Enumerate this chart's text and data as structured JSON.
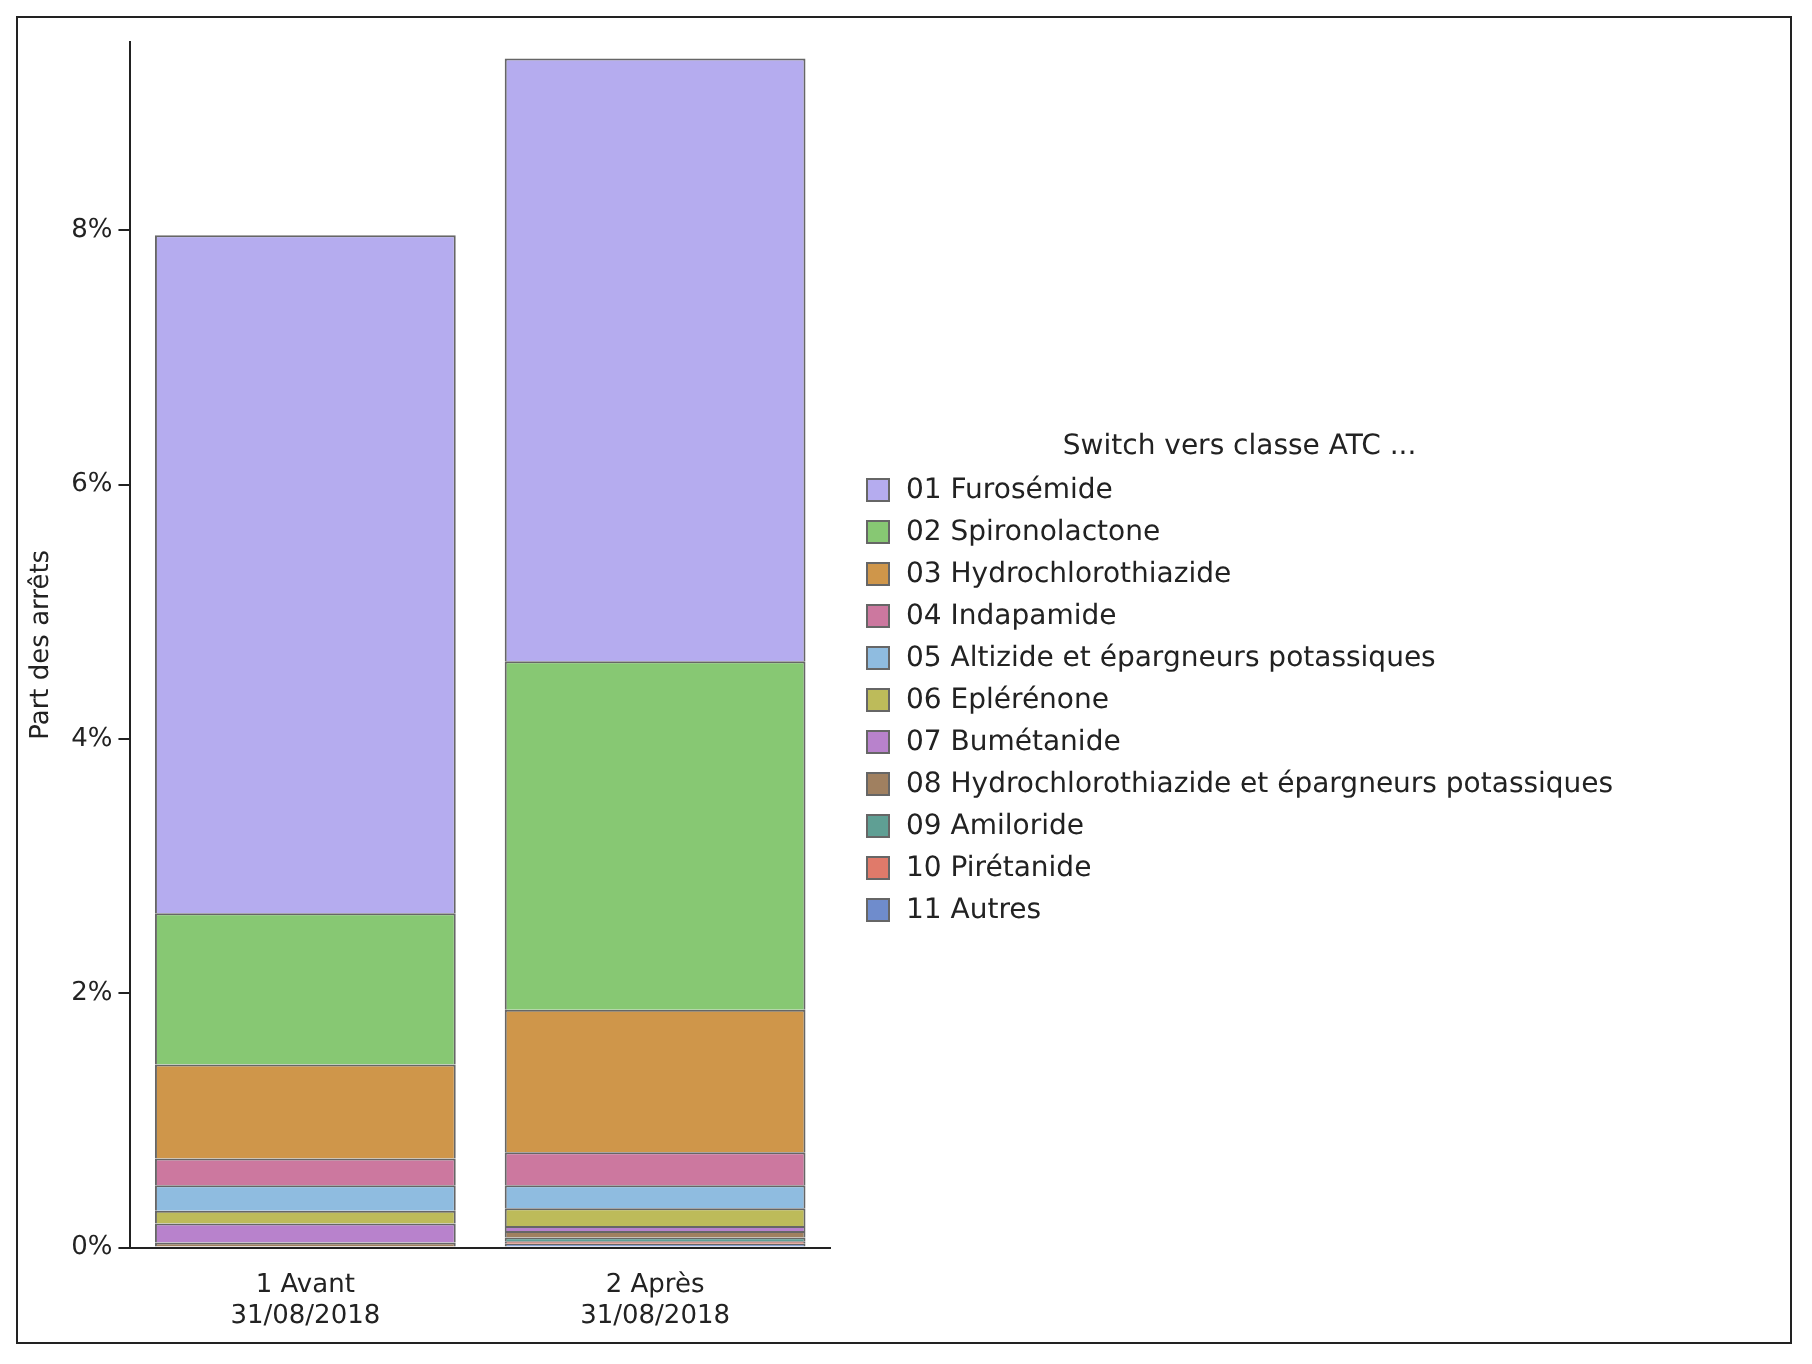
{
  "chart_data": {
    "type": "bar",
    "stacked": true,
    "ylabel": "Part des arrêts",
    "legend_title": "Switch vers classe ATC ...",
    "legend": "right",
    "grid": false,
    "categories": [
      "1 Avant\n31/08/2018",
      "2 Après\n31/08/2018"
    ],
    "ylim": [
      0,
      9.48
    ],
    "yticks": [
      {
        "value": 0,
        "label": "0%"
      },
      {
        "value": 2,
        "label": "2%"
      },
      {
        "value": 4,
        "label": "4%"
      },
      {
        "value": 6,
        "label": "6%"
      },
      {
        "value": 8,
        "label": "8%"
      }
    ],
    "series": [
      {
        "name": "11 Autres",
        "color": "#6f8ccc",
        "values": [
          null,
          0.03
        ]
      },
      {
        "name": "10 Pirétanide",
        "color": "#e07a6a",
        "values": [
          null,
          0.02
        ]
      },
      {
        "name": "09 Amiloride",
        "color": "#5f9f94",
        "values": [
          null,
          0.03
        ]
      },
      {
        "name": "08 Hydrochlorothiazide et épargneurs potassiques",
        "color": "#a08060",
        "values": [
          0.04,
          0.05
        ]
      },
      {
        "name": "07 Bumétanide",
        "color": "#b882cc",
        "values": [
          0.15,
          0.04
        ]
      },
      {
        "name": "06 Eplérénone",
        "color": "#bdbb5a",
        "values": [
          0.1,
          0.14
        ]
      },
      {
        "name": "05 Altizide et épargneurs potassiques",
        "color": "#8fbce0",
        "values": [
          0.2,
          0.18
        ]
      },
      {
        "name": "04 Indapamide",
        "color": "#cc789f",
        "values": [
          0.21,
          0.26
        ]
      },
      {
        "name": "03 Hydrochlorothiazide",
        "color": "#cf964a",
        "values": [
          0.74,
          1.12
        ]
      },
      {
        "name": "02 Spironolactone",
        "color": "#87c873",
        "values": [
          1.19,
          2.74
        ]
      },
      {
        "name": "01 Furosémide",
        "color": "#b5acef",
        "values": [
          5.33,
          4.74
        ]
      }
    ]
  }
}
